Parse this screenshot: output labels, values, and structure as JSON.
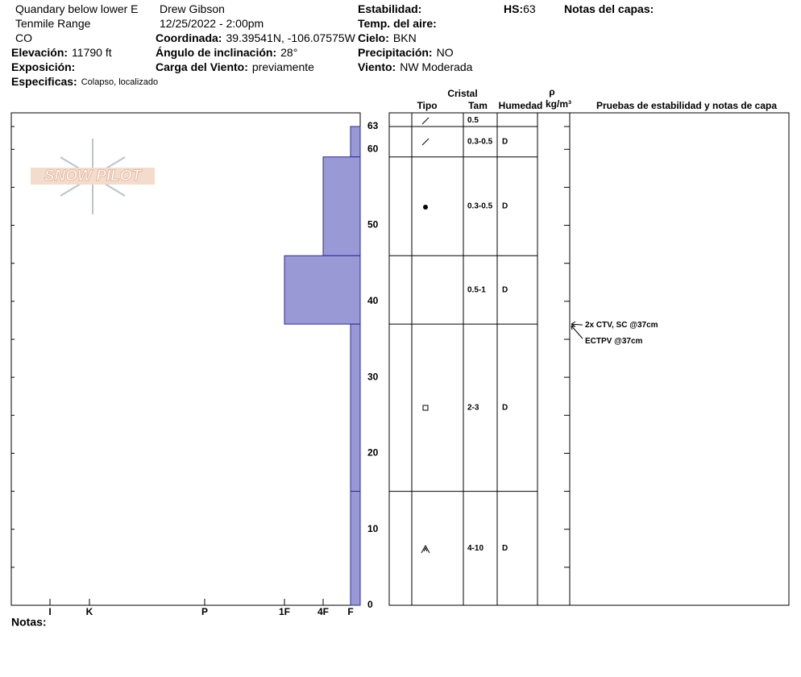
{
  "header": {
    "columns": [
      [
        {
          "value": "Quandary below lower E"
        },
        {
          "value": "Tenmile Range"
        },
        {
          "value": "CO"
        },
        {
          "label": "Elevación:",
          "value": "11790 ft"
        },
        {
          "label": "Exposición:"
        },
        {
          "label": "Especificas:",
          "value": "Colapso, localizado"
        }
      ],
      [
        {
          "value": "Drew Gibson"
        },
        {
          "value": "12/25/2022 - 2:00pm"
        },
        {
          "label": "Coordinada:",
          "value": "39.39541N, -106.07575W"
        },
        {
          "label": "Ángulo de inclinación:",
          "value": "28°"
        },
        {
          "label": "Carga del Viento:",
          "value": "previamente"
        }
      ],
      [
        {
          "label": "Estabilidad:"
        },
        {
          "label": "Temp. del aire:"
        },
        {
          "label": "Cielo:",
          "value": "BKN"
        },
        {
          "label": "Precipitación:",
          "value": "NO"
        },
        {
          "label": "Viento:",
          "value": "NW Moderada"
        }
      ],
      [
        {
          "label": "HS:",
          "value": "63"
        }
      ],
      [
        {
          "label": "Notas del capas:"
        }
      ]
    ]
  },
  "logo": "SNOW PILOT",
  "notes_label": "Notas:",
  "chart_data": {
    "type": "snow-profile",
    "ylim": [
      0,
      64.8
    ],
    "yticks": [
      0,
      10,
      20,
      30,
      40,
      50,
      60,
      63
    ],
    "yminor": [
      5,
      15,
      25,
      35,
      45,
      55
    ],
    "xticks": [
      "I",
      "K",
      "P",
      "1F",
      "4F",
      "F"
    ],
    "color": "#9999d6",
    "edge": "#2a2a9a",
    "layers": [
      {
        "top": 63,
        "bottom": 59,
        "hardness": "F"
      },
      {
        "top": 59,
        "bottom": 46,
        "hardness": "4F"
      },
      {
        "top": 46,
        "bottom": 37,
        "hardness": "1F"
      },
      {
        "top": 37,
        "bottom": 15,
        "hardness": "F"
      },
      {
        "top": 15,
        "bottom": 0,
        "hardness": "F"
      }
    ],
    "table": {
      "headers": {
        "crystal": "Cristal",
        "type": "Tipo",
        "size": "Tam",
        "moisture": "Humedad",
        "density": "ρ",
        "density_unit": "kg/m³",
        "tests": "Pruebas de estabilidad y notas de capa"
      },
      "rows": [
        {
          "size": "0.5"
        },
        {
          "size": "0.3-0.5",
          "moisture": "D"
        },
        {
          "size": "0.3-0.5",
          "moisture": "D"
        },
        {
          "size": "0.5-1",
          "moisture": "D"
        },
        {
          "size": "2-3",
          "moisture": "D"
        },
        {
          "size": "4-10",
          "moisture": "D"
        }
      ]
    },
    "tests": [
      {
        "text": "2x CTV, SC @37cm",
        "depth": 37
      },
      {
        "text": "ECTPV @37cm",
        "depth": 37
      }
    ]
  }
}
